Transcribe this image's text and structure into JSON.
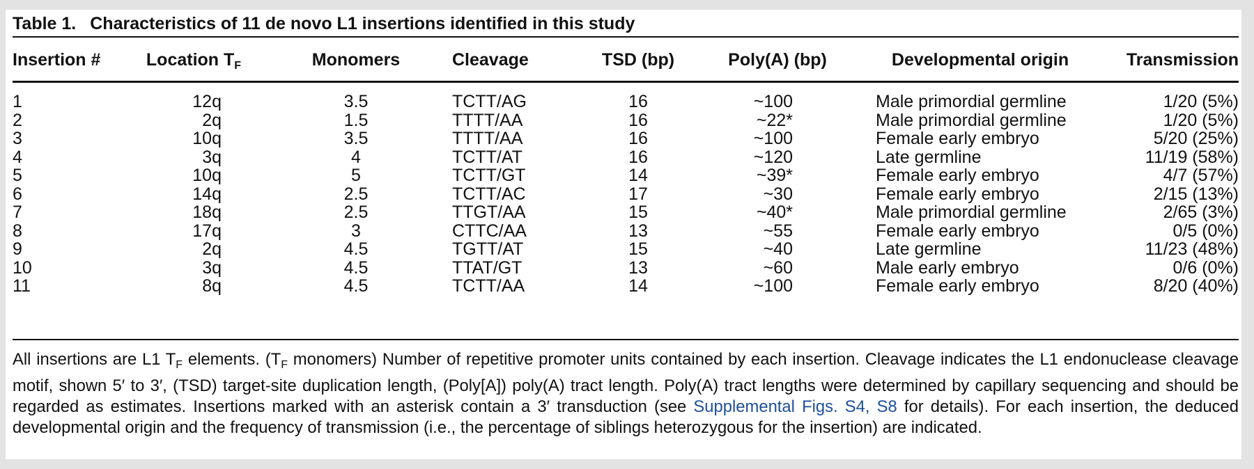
{
  "caption": {
    "label": "Table 1.",
    "title": "Characteristics of 11 de novo L1 insertions identified in this study"
  },
  "columns": {
    "insertion": "Insertion #",
    "location": "Location T",
    "location_sub": "F",
    "monomers": "Monomers",
    "cleavage": "Cleavage",
    "tsd": "TSD (bp)",
    "polya": "Poly(A) (bp)",
    "origin": "Developmental origin",
    "transmission": "Transmission"
  },
  "rows": [
    {
      "id": "1",
      "location": "12q",
      "monomers": "3.5",
      "cleavage": "TCTT/AG",
      "tsd": "16",
      "polya": "~100",
      "origin": "Male primordial germline",
      "transmission": "1/20 (5%)"
    },
    {
      "id": "2",
      "location": "2q",
      "monomers": "1.5",
      "cleavage": "TTTT/AA",
      "tsd": "16",
      "polya": "~22*",
      "origin": "Male primordial germline",
      "transmission": "1/20 (5%)"
    },
    {
      "id": "3",
      "location": "10q",
      "monomers": "3.5",
      "cleavage": "TTTT/AA",
      "tsd": "16",
      "polya": "~100",
      "origin": "Female early embryo",
      "transmission": "5/20 (25%)"
    },
    {
      "id": "4",
      "location": "3q",
      "monomers": "4",
      "cleavage": "TCTT/AT",
      "tsd": "16",
      "polya": "~120",
      "origin": "Late germline",
      "transmission": "11/19 (58%)"
    },
    {
      "id": "5",
      "location": "10q",
      "monomers": "5",
      "cleavage": "TCTT/GT",
      "tsd": "14",
      "polya": "~39*",
      "origin": "Female early embryo",
      "transmission": "4/7 (57%)"
    },
    {
      "id": "6",
      "location": "14q",
      "monomers": "2.5",
      "cleavage": "TCTT/AC",
      "tsd": "17",
      "polya": "~30",
      "origin": "Female early embryo",
      "transmission": "2/15 (13%)"
    },
    {
      "id": "7",
      "location": "18q",
      "monomers": "2.5",
      "cleavage": "TTGT/AA",
      "tsd": "15",
      "polya": "~40*",
      "origin": "Male primordial germline",
      "transmission": "2/65 (3%)"
    },
    {
      "id": "8",
      "location": "17q",
      "monomers": "3",
      "cleavage": "CTTC/AA",
      "tsd": "13",
      "polya": "~55",
      "origin": "Female early embryo",
      "transmission": "0/5 (0%)"
    },
    {
      "id": "9",
      "location": "2q",
      "monomers": "4.5",
      "cleavage": "TGTT/AT",
      "tsd": "15",
      "polya": "~40",
      "origin": "Late germline",
      "transmission": "11/23 (48%)"
    },
    {
      "id": "10",
      "location": "3q",
      "monomers": "4.5",
      "cleavage": "TTAT/GT",
      "tsd": "13",
      "polya": "~60",
      "origin": "Male early embryo",
      "transmission": "0/6 (0%)"
    },
    {
      "id": "11",
      "location": "8q",
      "monomers": "4.5",
      "cleavage": "TCTT/AA",
      "tsd": "14",
      "polya": "~100",
      "origin": "Female early embryo",
      "transmission": "8/20 (40%)"
    }
  ],
  "notes": {
    "t1": "All insertions are L1 T",
    "t1_sub": "F",
    "t2": " elements. (T",
    "t2_sub": "F",
    "t3": " monomers) Number of repetitive promoter units contained by each insertion. Cleavage indicates the L1 endonuclease cleavage motif, shown 5′ to 3′, (TSD) target-site duplication length, (Poly[A]) poly(A) tract length. Poly(A) tract lengths were determined by capillary sequencing and should be regarded as estimates. Insertions marked with an asterisk contain a 3′ transduction (see ",
    "link": "Supplemental Figs. S4, S8",
    "t4": " for details). For each insertion, the deduced developmental origin and the frequency of transmission (i.e., the percentage of siblings heterozygous for the insertion) are indicated."
  }
}
